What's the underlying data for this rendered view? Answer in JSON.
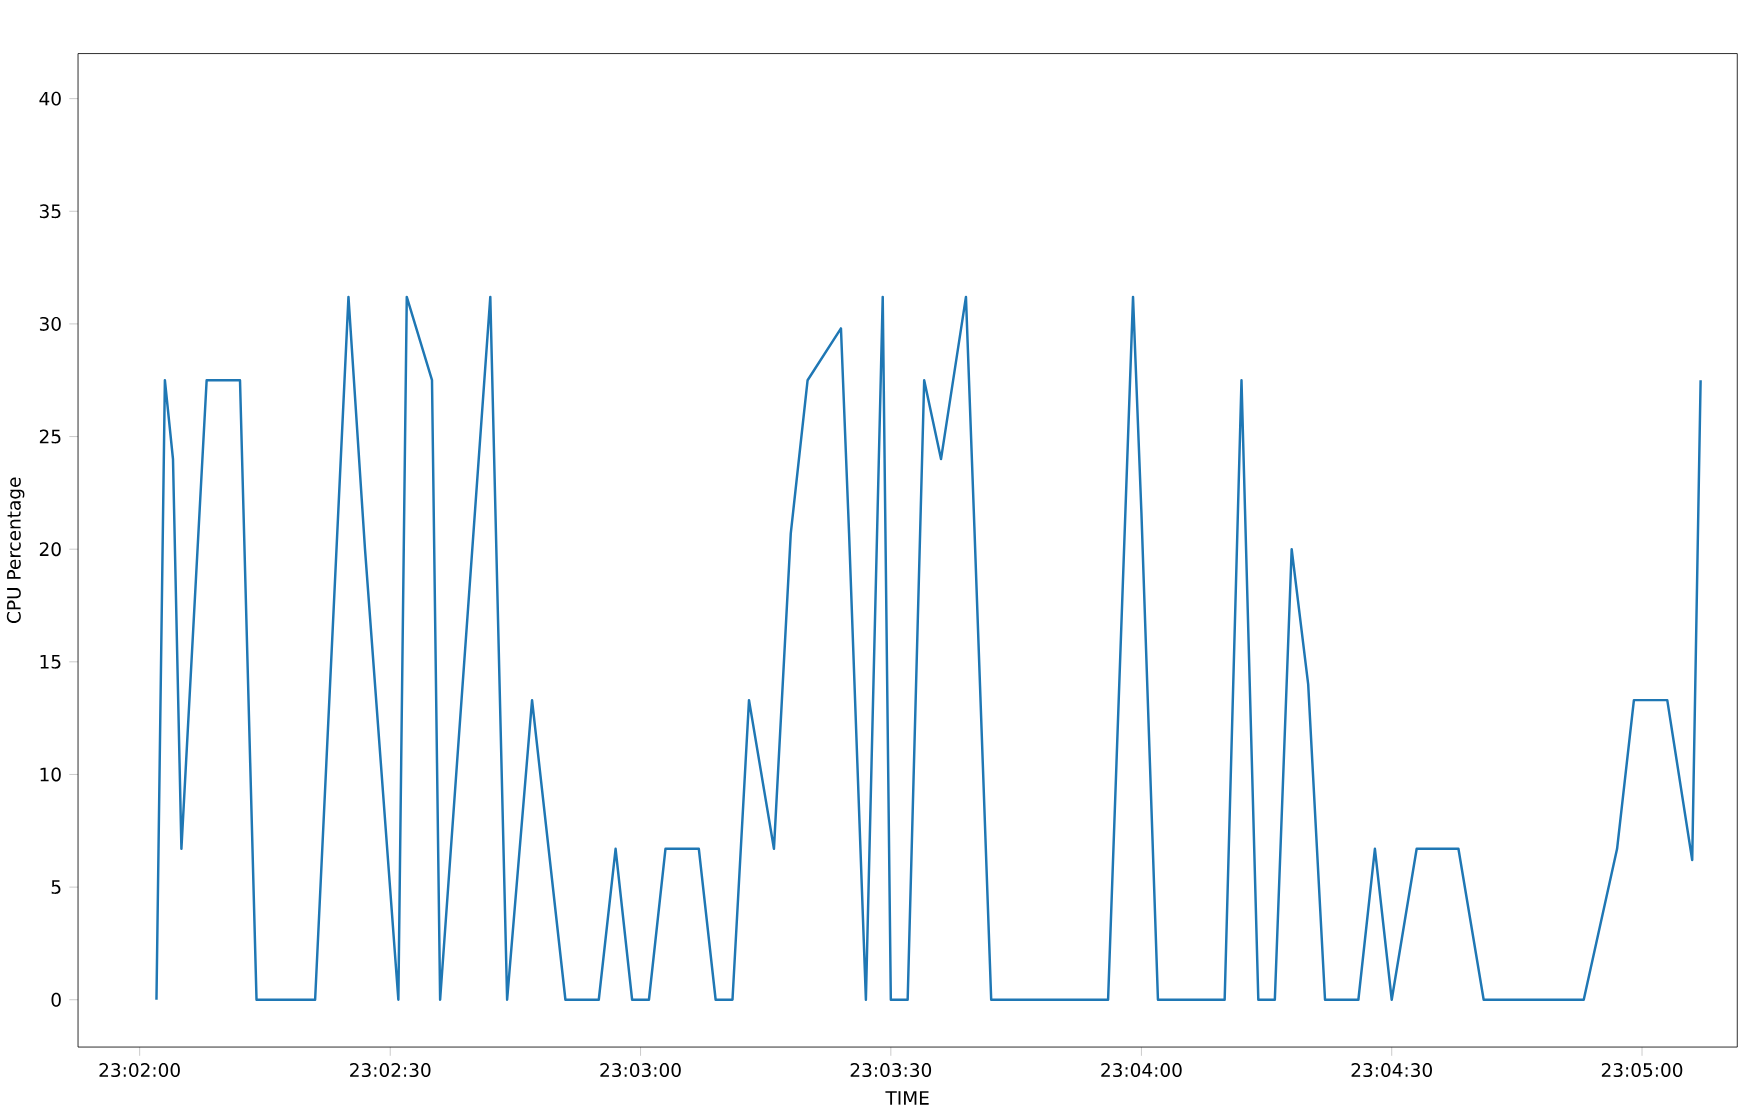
{
  "chart_data": {
    "type": "line",
    "xlabel": "TIME",
    "ylabel": "CPU Percentage",
    "color": "#1f77b4",
    "marker": "none",
    "line_style": "solid",
    "x": [
      23.03389,
      23.03417,
      23.03444,
      23.03472,
      23.03556,
      23.03667,
      23.03722,
      23.03917,
      23.04028,
      23.04083,
      23.04194,
      23.04222,
      23.04306,
      23.04333,
      23.045,
      23.04556,
      23.04639,
      23.0475,
      23.04861,
      23.04917,
      23.04972,
      23.05028,
      23.05083,
      23.05194,
      23.0525,
      23.05306,
      23.05361,
      23.05444,
      23.055,
      23.05556,
      23.05667,
      23.05694,
      23.0575,
      23.05806,
      23.05833,
      23.05889,
      23.05944,
      23.06,
      23.06083,
      23.06111,
      23.06167,
      23.06556,
      23.06639,
      23.06667,
      23.06722,
      23.06944,
      23.07,
      23.07056,
      23.07111,
      23.07167,
      23.07222,
      23.07278,
      23.07389,
      23.07444,
      23.075,
      23.07583,
      23.07722,
      23.07806,
      23.08139,
      23.0825,
      23.08306,
      23.08417,
      23.085,
      23.08528
    ],
    "values": [
      0,
      27.5,
      24,
      6.7,
      27.5,
      27.5,
      0,
      0,
      31.2,
      20,
      0,
      31.2,
      27.5,
      0,
      31.2,
      0,
      13.3,
      0,
      0,
      6.7,
      0,
      0,
      6.7,
      6.7,
      0,
      0,
      13.3,
      6.7,
      20.7,
      27.5,
      29.8,
      20.7,
      0,
      31.2,
      0,
      0,
      27.5,
      24,
      31.2,
      21,
      0,
      0,
      31.2,
      21.6,
      0,
      0,
      27.5,
      0,
      0,
      20,
      14,
      0,
      0,
      6.7,
      0,
      6.7,
      6.7,
      0,
      0,
      6.7,
      13.3,
      13.3,
      6.2,
      27.5
    ],
    "xlim": [
      23.03128,
      23.0865
    ],
    "ylim": [
      -2.1,
      42
    ],
    "xticks": [
      {
        "value": 23.03333,
        "label": "23:02:00"
      },
      {
        "value": 23.04167,
        "label": "23:02:30"
      },
      {
        "value": 23.05,
        "label": "23:03:00"
      },
      {
        "value": 23.05833,
        "label": "23:03:30"
      },
      {
        "value": 23.06667,
        "label": "23:04:00"
      },
      {
        "value": 23.075,
        "label": "23:04:30"
      },
      {
        "value": 23.08333,
        "label": "23:05:00"
      }
    ],
    "yticks": [
      0,
      5,
      10,
      15,
      20,
      25,
      30,
      35,
      40
    ]
  }
}
